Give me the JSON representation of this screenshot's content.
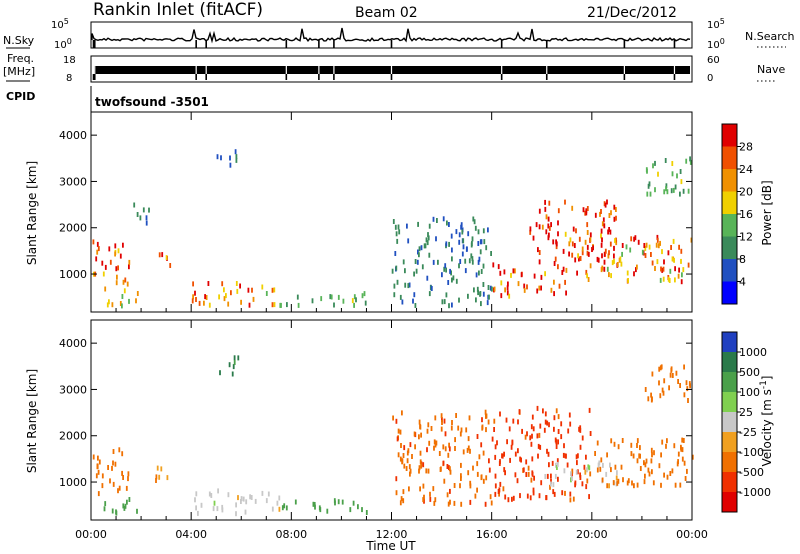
{
  "header": {
    "station": "Rankin Inlet (fitACF)",
    "beam": "Beam 02",
    "date": "21/Dec/2012"
  },
  "strip_panels": {
    "nsky": {
      "label": "N.Sky",
      "ticks": [
        "10^5",
        "10^0"
      ],
      "right_label": "N.Search",
      "right_ticks": [
        "10^5",
        "10^0"
      ]
    },
    "freq": {
      "label_line1": "Freq.",
      "label_line2": "[MHz]",
      "ticks": [
        "18",
        "8"
      ],
      "right_label": "Nave",
      "right_ticks": [
        "60",
        "0"
      ]
    },
    "cpid": {
      "label": "CPID",
      "value": "twofsound -3501"
    }
  },
  "colors": {
    "power_scale": [
      "#0000ff",
      "#2050c0",
      "#3a8a5a",
      "#58b458",
      "#f0d000",
      "#f09000",
      "#f05000",
      "#e00000"
    ],
    "velocity_scale": [
      "#2040c0",
      "#2a7a4a",
      "#4aa04a",
      "#80d050",
      "#c8c8c8",
      "#f0a020",
      "#f07000",
      "#f03000",
      "#e00000"
    ]
  },
  "chart_data": [
    {
      "type": "heatmap",
      "panel": "power",
      "ylabel": "Slant Range [km]",
      "yticks": [
        "1000",
        "2000",
        "3000",
        "4000"
      ],
      "ylim": [
        180,
        4500
      ],
      "xticks": [
        "00:00",
        "04:00",
        "08:00",
        "12:00",
        "16:00",
        "20:00",
        "00:00"
      ],
      "xlim_hours": [
        0,
        24
      ],
      "colorbar_label": "Power [dB]",
      "colorbar_ticks": [
        "4",
        "8",
        "12",
        "16",
        "20",
        "24",
        "28"
      ],
      "colorbar_range": [
        0,
        30
      ],
      "regions": [
        {
          "t0": 0.0,
          "t1": 1.5,
          "r0": 700,
          "r1": 1700,
          "value": 26
        },
        {
          "t0": 0.5,
          "t1": 2.0,
          "r0": 300,
          "r1": 700,
          "value": 18
        },
        {
          "t0": 1.5,
          "t1": 2.3,
          "r0": 2000,
          "r1": 2500,
          "value": 8
        },
        {
          "t0": 2.5,
          "t1": 3.2,
          "r0": 1100,
          "r1": 1500,
          "value": 24
        },
        {
          "t0": 4.0,
          "t1": 7.5,
          "r0": 300,
          "r1": 800,
          "value": 22
        },
        {
          "t0": 5.0,
          "t1": 6.0,
          "r0": 3300,
          "r1": 3700,
          "value": 8
        },
        {
          "t0": 7.5,
          "t1": 11.0,
          "r0": 300,
          "r1": 600,
          "value": 12
        },
        {
          "t0": 12.0,
          "t1": 16.0,
          "r0": 300,
          "r1": 2200,
          "value": 8
        },
        {
          "t0": 16.0,
          "t1": 19.0,
          "r0": 500,
          "r1": 1200,
          "value": 26
        },
        {
          "t0": 17.5,
          "t1": 21.0,
          "r0": 1200,
          "r1": 2600,
          "value": 28
        },
        {
          "t0": 19.0,
          "t1": 24.0,
          "r0": 800,
          "r1": 1800,
          "value": 22
        },
        {
          "t0": 22.0,
          "t1": 24.0,
          "r0": 2700,
          "r1": 3500,
          "value": 12
        }
      ]
    },
    {
      "type": "heatmap",
      "panel": "velocity",
      "ylabel": "Slant Range [km]",
      "yticks": [
        "1000",
        "2000",
        "3000",
        "4000"
      ],
      "ylim": [
        180,
        4500
      ],
      "xticks": [
        "00:00",
        "04:00",
        "08:00",
        "12:00",
        "16:00",
        "20:00",
        "00:00"
      ],
      "xlim_hours": [
        0,
        24
      ],
      "xlabel": "Time UT",
      "colorbar_label": "Velocity [m s^-1]",
      "colorbar_ticks": [
        "1000",
        "500",
        "100",
        "25",
        "-25",
        "-100",
        "-500",
        "-1000"
      ],
      "regions": [
        {
          "t0": 0.0,
          "t1": 1.5,
          "r0": 700,
          "r1": 1700,
          "value": -200
        },
        {
          "t0": 0.5,
          "t1": 2.0,
          "r0": 300,
          "r1": 700,
          "value": 150
        },
        {
          "t0": 2.5,
          "t1": 3.2,
          "r0": 1000,
          "r1": 1500,
          "value": -100
        },
        {
          "t0": 4.0,
          "t1": 7.5,
          "r0": 300,
          "r1": 800,
          "value": 0
        },
        {
          "t0": 5.0,
          "t1": 6.0,
          "r0": 3300,
          "r1": 3700,
          "value": 600
        },
        {
          "t0": 7.5,
          "t1": 11.0,
          "r0": 300,
          "r1": 600,
          "value": 200
        },
        {
          "t0": 12.0,
          "t1": 16.0,
          "r0": 500,
          "r1": 2500,
          "value": -400
        },
        {
          "t0": 16.0,
          "t1": 20.0,
          "r0": 600,
          "r1": 2600,
          "value": -700
        },
        {
          "t0": 18.0,
          "t1": 21.0,
          "r0": 900,
          "r1": 1400,
          "value": 0
        },
        {
          "t0": 20.0,
          "t1": 24.0,
          "r0": 900,
          "r1": 1900,
          "value": -200
        },
        {
          "t0": 22.0,
          "t1": 24.0,
          "r0": 2700,
          "r1": 3500,
          "value": -150
        }
      ]
    }
  ]
}
